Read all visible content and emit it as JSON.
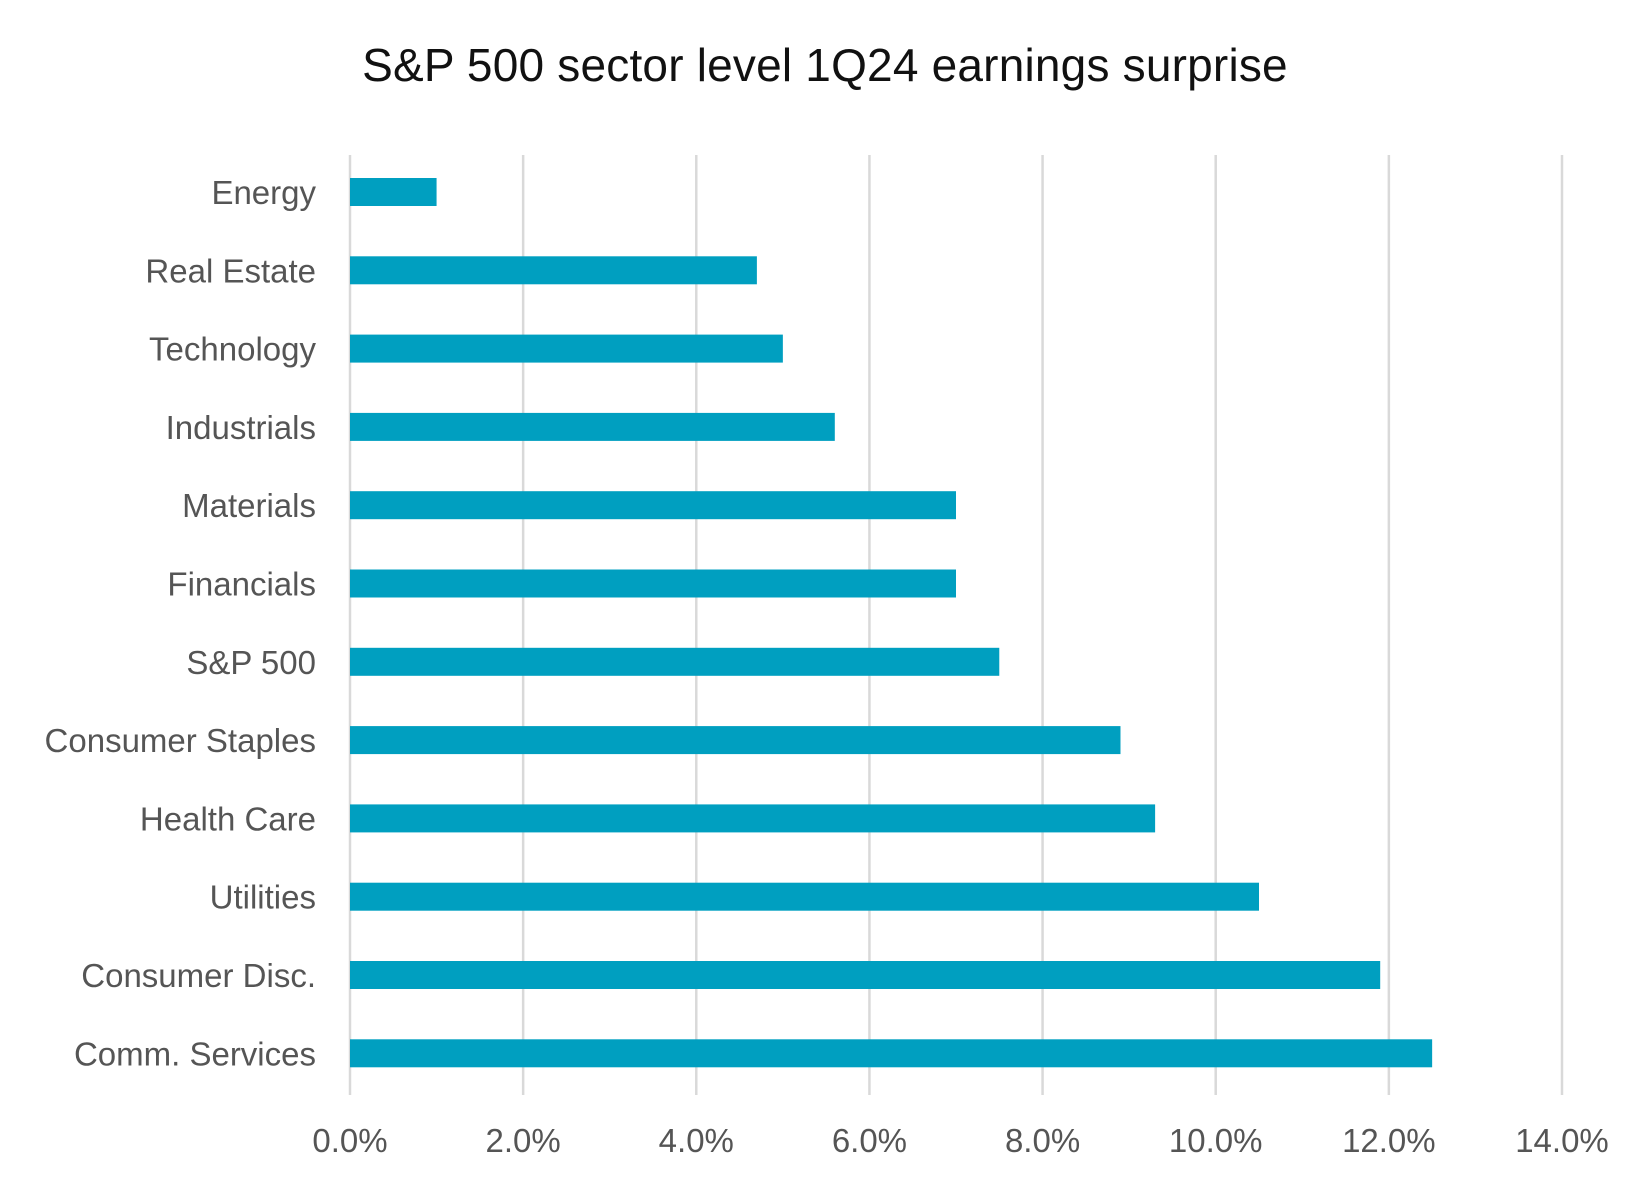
{
  "chart_data": {
    "type": "bar",
    "orientation": "horizontal",
    "title": "S&P 500 sector level 1Q24 earnings surprise",
    "xlabel": "",
    "ylabel": "",
    "categories": [
      "Energy",
      "Real Estate",
      "Technology",
      "Industrials",
      "Materials",
      "Financials",
      "S&P 500",
      "Consumer Staples",
      "Health Care",
      "Utilities",
      "Consumer Disc.",
      "Comm. Services"
    ],
    "values": [
      1.0,
      4.7,
      5.0,
      5.6,
      7.0,
      7.0,
      7.5,
      8.9,
      9.3,
      10.5,
      11.9,
      12.5
    ],
    "xlim": [
      0,
      14
    ],
    "xticks": [
      0,
      2,
      4,
      6,
      8,
      10,
      12,
      14
    ],
    "xtick_labels": [
      "0.0%",
      "2.0%",
      "4.0%",
      "6.0%",
      "8.0%",
      "10.0%",
      "12.0%",
      "14.0%"
    ],
    "grid": "vertical",
    "legend": "none",
    "bar_color": "#009fc0"
  }
}
